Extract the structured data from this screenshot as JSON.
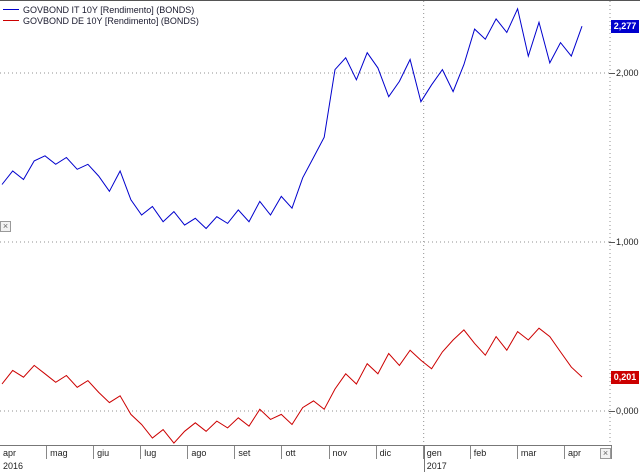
{
  "legend": {
    "items": [
      {
        "label": "GOVBOND IT 10Y [Rendimento] (BONDS)",
        "color": "#0000cd"
      },
      {
        "label": "GOVBOND DE 10Y [Rendimento] (BONDS)",
        "color": "#cc0000"
      }
    ]
  },
  "y_axis": {
    "ticks": [
      {
        "label": "2,000",
        "value": 2.0
      },
      {
        "label": "1,000",
        "value": 1.0
      },
      {
        "label": "0,000",
        "value": 0.0
      }
    ]
  },
  "price_labels": [
    {
      "text": "2,277",
      "color": "#0000cd"
    },
    {
      "text": "0,201",
      "color": "#cc0000"
    }
  ],
  "x_axis": {
    "months": [
      "apr",
      "mag",
      "giu",
      "lug",
      "ago",
      "set",
      "ott",
      "nov",
      "dic",
      "gen",
      "feb",
      "mar",
      "apr"
    ],
    "years": [
      {
        "label": "2016",
        "position_month": 0
      },
      {
        "label": "2017",
        "position_month": 9
      }
    ]
  },
  "icons": {
    "scroll_end": "×"
  },
  "colors": {
    "grid": "#909090",
    "axis": "#777777",
    "background": "#ffffff"
  },
  "chart_data": {
    "type": "line",
    "title": "",
    "xlabel": "",
    "ylabel": "",
    "x_range": [
      "apr 2016",
      "apr 2017"
    ],
    "ylim": [
      -0.25,
      2.45
    ],
    "gridlines_y": [
      0.0,
      1.0,
      2.0
    ],
    "grid_style": "dashed",
    "vertical_gridline_month_index": 9,
    "legend_position": "top-left",
    "series": [
      {
        "name": "GOVBOND IT 10Y [Rendimento] (BONDS)",
        "color": "#0000cd",
        "last_value": 2.277,
        "values": [
          1.34,
          1.42,
          1.37,
          1.48,
          1.51,
          1.46,
          1.5,
          1.43,
          1.46,
          1.39,
          1.3,
          1.42,
          1.25,
          1.16,
          1.21,
          1.12,
          1.18,
          1.1,
          1.14,
          1.08,
          1.15,
          1.11,
          1.19,
          1.12,
          1.24,
          1.16,
          1.27,
          1.2,
          1.38,
          1.5,
          1.62,
          2.02,
          2.09,
          1.96,
          2.12,
          2.03,
          1.86,
          1.95,
          2.08,
          1.83,
          1.93,
          2.02,
          1.89,
          2.05,
          2.26,
          2.2,
          2.32,
          2.24,
          2.38,
          2.1,
          2.3,
          2.06,
          2.18,
          2.1,
          2.277
        ]
      },
      {
        "name": "GOVBOND DE 10Y [Rendimento] (BONDS)",
        "color": "#cc0000",
        "last_value": 0.201,
        "values": [
          0.16,
          0.24,
          0.2,
          0.27,
          0.22,
          0.17,
          0.21,
          0.14,
          0.18,
          0.11,
          0.05,
          0.09,
          -0.02,
          -0.08,
          -0.16,
          -0.11,
          -0.19,
          -0.12,
          -0.07,
          -0.12,
          -0.06,
          -0.1,
          -0.04,
          -0.09,
          0.01,
          -0.05,
          -0.02,
          -0.08,
          0.02,
          0.06,
          0.01,
          0.13,
          0.22,
          0.16,
          0.28,
          0.22,
          0.34,
          0.27,
          0.36,
          0.3,
          0.25,
          0.35,
          0.42,
          0.48,
          0.4,
          0.33,
          0.44,
          0.36,
          0.47,
          0.42,
          0.49,
          0.44,
          0.35,
          0.26,
          0.201
        ]
      }
    ]
  }
}
